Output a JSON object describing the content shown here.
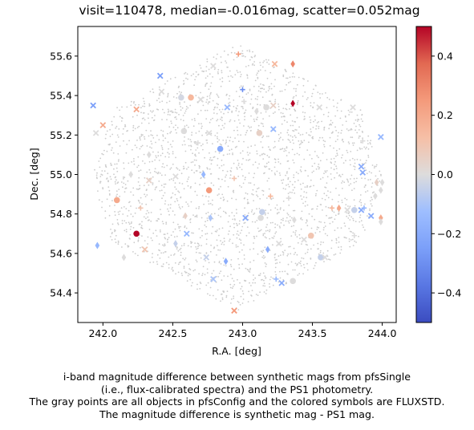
{
  "chart_data": {
    "type": "scatter",
    "title": "visit=110478, median=-0.016mag, scatter=0.052mag",
    "xlabel": "R.A. [deg]",
    "ylabel": "Dec. [deg]",
    "xlim": [
      241.82,
      244.1
    ],
    "ylim": [
      54.25,
      55.75
    ],
    "xticks": [
      "242.0",
      "242.5",
      "243.0",
      "243.5",
      "244.0"
    ],
    "yticks": [
      "54.4",
      "54.6",
      "54.8",
      "55.0",
      "55.2",
      "55.4",
      "55.6"
    ],
    "grid": false,
    "background_points": {
      "name": "all objects in pfsConfig",
      "color": "#cccccc",
      "footprint": "hexagon",
      "center": [
        242.96,
        54.99
      ],
      "vertices": [
        [
          242.96,
          55.67
        ],
        [
          243.85,
          55.33
        ],
        [
          244.0,
          54.99
        ],
        [
          243.85,
          54.65
        ],
        [
          242.96,
          54.31
        ],
        [
          242.07,
          54.65
        ],
        [
          241.92,
          54.99
        ],
        [
          242.07,
          55.33
        ]
      ]
    },
    "colorbar": {
      "label": "",
      "cmap": "coolwarm",
      "vmin": -0.5,
      "vmax": 0.5,
      "ticks": [
        "−0.4",
        "−0.2",
        "0.0",
        "0.2",
        "0.4"
      ]
    },
    "series": [
      {
        "points": [
          {
            "x": 242.97,
            "y": 55.61,
            "v": 0.25,
            "m": "+"
          },
          {
            "x": 242.41,
            "y": 55.5,
            "v": -0.25,
            "m": "x"
          },
          {
            "x": 242.79,
            "y": 55.55,
            "v": 0.0,
            "m": "x"
          },
          {
            "x": 243.23,
            "y": 55.56,
            "v": 0.15,
            "m": "x"
          },
          {
            "x": 243.36,
            "y": 55.56,
            "v": 0.3,
            "m": "d"
          },
          {
            "x": 243.0,
            "y": 55.43,
            "v": -0.3,
            "m": "+"
          },
          {
            "x": 241.93,
            "y": 55.35,
            "v": -0.25,
            "m": "x"
          },
          {
            "x": 242.24,
            "y": 55.33,
            "v": 0.2,
            "m": "x"
          },
          {
            "x": 242.42,
            "y": 55.42,
            "v": 0.0,
            "m": "x"
          },
          {
            "x": 242.56,
            "y": 55.39,
            "v": -0.02,
            "m": "o"
          },
          {
            "x": 242.63,
            "y": 55.39,
            "v": 0.15,
            "m": "o"
          },
          {
            "x": 242.7,
            "y": 55.38,
            "v": 0.0,
            "m": "x"
          },
          {
            "x": 242.89,
            "y": 55.34,
            "v": -0.15,
            "m": "x"
          },
          {
            "x": 243.01,
            "y": 55.37,
            "v": 0.0,
            "m": "+"
          },
          {
            "x": 243.1,
            "y": 55.32,
            "v": 0.0,
            "m": "d"
          },
          {
            "x": 243.17,
            "y": 55.34,
            "v": 0.0,
            "m": "o"
          },
          {
            "x": 243.36,
            "y": 55.36,
            "v": 0.5,
            "m": "d"
          },
          {
            "x": 243.22,
            "y": 55.35,
            "v": 0.05,
            "m": "x"
          },
          {
            "x": 243.55,
            "y": 55.34,
            "v": 0.0,
            "m": "x"
          },
          {
            "x": 243.79,
            "y": 55.34,
            "v": 0.0,
            "m": "x"
          },
          {
            "x": 241.95,
            "y": 55.21,
            "v": 0.0,
            "m": "x"
          },
          {
            "x": 242.0,
            "y": 55.25,
            "v": 0.2,
            "m": "x"
          },
          {
            "x": 242.58,
            "y": 55.22,
            "v": 0.0,
            "m": "o"
          },
          {
            "x": 242.76,
            "y": 55.21,
            "v": 0.0,
            "m": "x"
          },
          {
            "x": 243.12,
            "y": 55.21,
            "v": 0.05,
            "m": "o"
          },
          {
            "x": 243.22,
            "y": 55.23,
            "v": -0.15,
            "m": "x"
          },
          {
            "x": 243.99,
            "y": 55.19,
            "v": -0.15,
            "m": "x"
          },
          {
            "x": 243.86,
            "y": 55.17,
            "v": 0.0,
            "m": "+"
          },
          {
            "x": 242.68,
            "y": 55.16,
            "v": 0.0,
            "m": "+"
          },
          {
            "x": 242.84,
            "y": 55.13,
            "v": -0.2,
            "m": "o"
          },
          {
            "x": 242.33,
            "y": 55.1,
            "v": 0.0,
            "m": "d"
          },
          {
            "x": 242.2,
            "y": 55.0,
            "v": 0.0,
            "m": "d"
          },
          {
            "x": 242.33,
            "y": 54.97,
            "v": 0.05,
            "m": "x"
          },
          {
            "x": 242.52,
            "y": 54.99,
            "v": 0.0,
            "m": "x"
          },
          {
            "x": 242.72,
            "y": 55.0,
            "v": -0.15,
            "m": "d"
          },
          {
            "x": 242.94,
            "y": 54.98,
            "v": 0.1,
            "m": "+"
          },
          {
            "x": 243.85,
            "y": 55.04,
            "v": -0.2,
            "m": "x"
          },
          {
            "x": 243.86,
            "y": 55.01,
            "v": -0.2,
            "m": "x"
          },
          {
            "x": 243.96,
            "y": 54.96,
            "v": 0.05,
            "m": "d"
          },
          {
            "x": 244.0,
            "y": 54.96,
            "v": 0.0,
            "m": "d"
          },
          {
            "x": 243.99,
            "y": 54.92,
            "v": 0.0,
            "m": "d"
          },
          {
            "x": 243.95,
            "y": 54.89,
            "v": 0.0,
            "m": "d"
          },
          {
            "x": 242.1,
            "y": 54.87,
            "v": 0.2,
            "m": "o"
          },
          {
            "x": 242.27,
            "y": 54.83,
            "v": 0.1,
            "m": "+"
          },
          {
            "x": 242.76,
            "y": 54.92,
            "v": 0.25,
            "m": "o"
          },
          {
            "x": 243.2,
            "y": 54.89,
            "v": 0.15,
            "m": "+"
          },
          {
            "x": 243.14,
            "y": 54.81,
            "v": -0.05,
            "m": "o"
          },
          {
            "x": 243.33,
            "y": 54.88,
            "v": 0.0,
            "m": "+"
          },
          {
            "x": 242.59,
            "y": 54.79,
            "v": 0.05,
            "m": "d"
          },
          {
            "x": 242.77,
            "y": 54.78,
            "v": -0.1,
            "m": "d"
          },
          {
            "x": 243.02,
            "y": 54.78,
            "v": -0.2,
            "m": "x"
          },
          {
            "x": 243.13,
            "y": 54.78,
            "v": 0.0,
            "m": "o"
          },
          {
            "x": 243.37,
            "y": 54.77,
            "v": 0.0,
            "m": "d"
          },
          {
            "x": 243.64,
            "y": 54.83,
            "v": 0.15,
            "m": "+"
          },
          {
            "x": 243.69,
            "y": 54.83,
            "v": 0.2,
            "m": "d"
          },
          {
            "x": 243.75,
            "y": 54.82,
            "v": 0.0,
            "m": "x"
          },
          {
            "x": 243.8,
            "y": 54.82,
            "v": -0.05,
            "m": "o"
          },
          {
            "x": 243.85,
            "y": 54.82,
            "v": -0.2,
            "m": "x"
          },
          {
            "x": 243.87,
            "y": 54.83,
            "v": -0.15,
            "m": "+"
          },
          {
            "x": 243.92,
            "y": 54.79,
            "v": -0.2,
            "m": "x"
          },
          {
            "x": 243.99,
            "y": 54.78,
            "v": 0.2,
            "m": "d"
          },
          {
            "x": 243.99,
            "y": 54.76,
            "v": 0.0,
            "m": "d"
          },
          {
            "x": 243.49,
            "y": 54.69,
            "v": 0.1,
            "m": "o"
          },
          {
            "x": 243.44,
            "y": 54.67,
            "v": 0.0,
            "m": "x"
          },
          {
            "x": 243.8,
            "y": 54.69,
            "v": 0.0,
            "m": "+"
          },
          {
            "x": 241.96,
            "y": 54.64,
            "v": -0.15,
            "m": "d"
          },
          {
            "x": 242.24,
            "y": 54.7,
            "v": 0.5,
            "m": "o"
          },
          {
            "x": 242.52,
            "y": 54.65,
            "v": -0.05,
            "m": "d"
          },
          {
            "x": 242.6,
            "y": 54.7,
            "v": -0.15,
            "m": "x"
          },
          {
            "x": 243.26,
            "y": 54.65,
            "v": 0.0,
            "m": "x"
          },
          {
            "x": 243.18,
            "y": 54.62,
            "v": -0.2,
            "m": "d"
          },
          {
            "x": 242.3,
            "y": 54.62,
            "v": 0.1,
            "m": "x"
          },
          {
            "x": 242.15,
            "y": 54.58,
            "v": 0.0,
            "m": "d"
          },
          {
            "x": 242.74,
            "y": 54.58,
            "v": -0.05,
            "m": "x"
          },
          {
            "x": 242.88,
            "y": 54.56,
            "v": -0.2,
            "m": "d"
          },
          {
            "x": 243.56,
            "y": 54.58,
            "v": -0.05,
            "m": "o"
          },
          {
            "x": 243.59,
            "y": 54.58,
            "v": 0.0,
            "m": "x"
          },
          {
            "x": 242.79,
            "y": 54.47,
            "v": -0.1,
            "m": "x"
          },
          {
            "x": 243.24,
            "y": 54.47,
            "v": -0.15,
            "m": "+"
          },
          {
            "x": 243.28,
            "y": 54.45,
            "v": -0.2,
            "m": "x"
          },
          {
            "x": 243.36,
            "y": 54.46,
            "v": 0.0,
            "m": "o"
          },
          {
            "x": 242.94,
            "y": 54.31,
            "v": 0.25,
            "m": "x"
          }
        ]
      }
    ]
  },
  "caption": [
    "i-band magnitude difference between synthetic mags from pfsSingle",
    "(i.e., flux-calibrated spectra) and the PS1 photometry.",
    "The gray points are all objects in pfsConfig and the colored symbols are FLUXSTD.",
    "The magnitude difference is synthetic mag - PS1 mag."
  ]
}
